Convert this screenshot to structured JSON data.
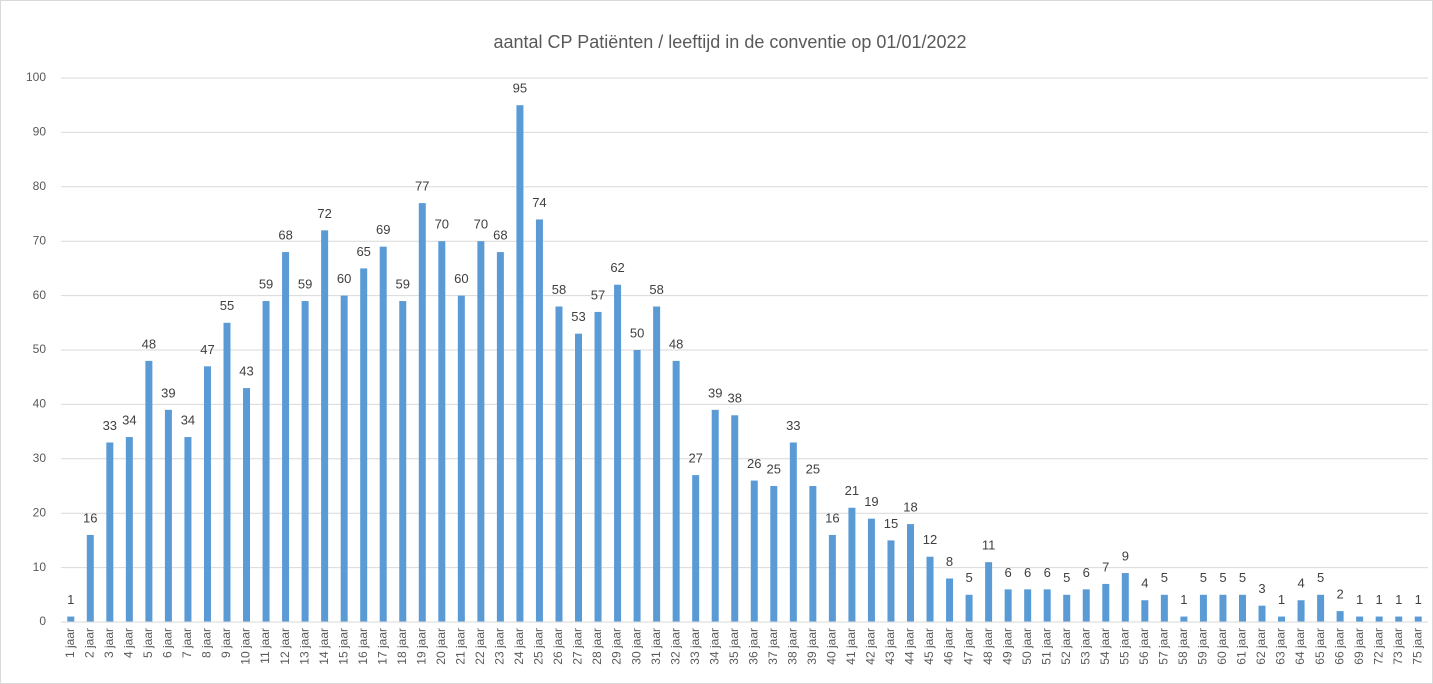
{
  "chart_data": {
    "type": "bar",
    "title": "aantal CP Patiënten / leeftijd in de conventie op 01/01/2022",
    "categories": [
      "1 jaar",
      "2 jaar",
      "3 jaar",
      "4 jaar",
      "5 jaar",
      "6 jaar",
      "7 jaar",
      "8 jaar",
      "9 jaar",
      "10 jaar",
      "11 jaar",
      "12 jaar",
      "13 jaar",
      "14 jaar",
      "15 jaar",
      "16 jaar",
      "17 jaar",
      "18 jaar",
      "19 jaar",
      "20 jaar",
      "21 jaar",
      "22 jaar",
      "23 jaar",
      "24 jaar",
      "25 jaar",
      "26 jaar",
      "27 jaar",
      "28 jaar",
      "29 jaar",
      "30 jaar",
      "31 jaar",
      "32 jaar",
      "33 jaar",
      "34 jaar",
      "35 jaar",
      "36 jaar",
      "37 jaar",
      "38 jaar",
      "39 jaar",
      "40 jaar",
      "41 jaar",
      "42 jaar",
      "43 jaar",
      "44 jaar",
      "45 jaar",
      "46 jaar",
      "47 jaar",
      "48 jaar",
      "49 jaar",
      "50 jaar",
      "51 jaar",
      "52 jaar",
      "53 jaar",
      "54 jaar",
      "55 jaar",
      "56 jaar",
      "57 jaar",
      "58 jaar",
      "59 jaar",
      "60 jaar",
      "61 jaar",
      "62 jaar",
      "63 jaar",
      "64 jaar",
      "65 jaar",
      "66 jaar",
      "69 jaar",
      "72 jaar",
      "73 jaar",
      "75 jaar"
    ],
    "values": [
      1,
      16,
      33,
      34,
      48,
      39,
      34,
      47,
      55,
      43,
      59,
      68,
      59,
      72,
      60,
      65,
      69,
      59,
      77,
      70,
      60,
      70,
      68,
      95,
      74,
      58,
      53,
      57,
      62,
      50,
      58,
      48,
      27,
      39,
      38,
      26,
      25,
      33,
      25,
      16,
      21,
      19,
      15,
      18,
      12,
      8,
      5,
      11,
      6,
      6,
      6,
      5,
      6,
      7,
      9,
      4,
      5,
      1,
      5,
      5,
      5,
      3,
      1,
      4,
      5,
      2,
      1,
      1,
      1,
      1
    ],
    "color": "#5b9bd5",
    "ylim": [
      0,
      100
    ],
    "yticks": [
      0,
      10,
      20,
      30,
      40,
      50,
      60,
      70,
      80,
      90,
      100
    ],
    "grid": true
  }
}
